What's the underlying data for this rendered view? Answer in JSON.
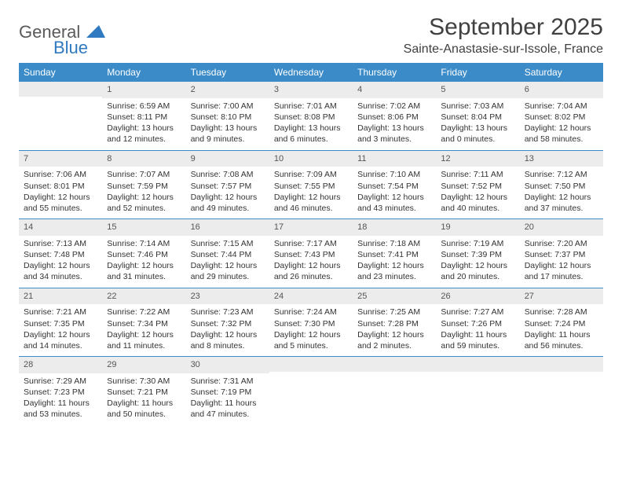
{
  "logo": {
    "word1": "General",
    "word2": "Blue"
  },
  "title": "September 2025",
  "location": "Sainte-Anastasie-sur-Issole, France",
  "colors": {
    "header_bg": "#3b8bc8",
    "daynum_bg": "#ececec",
    "text": "#333333",
    "title_text": "#404040",
    "logo_gray": "#5a5a5a",
    "logo_blue": "#2f7ac0"
  },
  "dayNames": [
    "Sunday",
    "Monday",
    "Tuesday",
    "Wednesday",
    "Thursday",
    "Friday",
    "Saturday"
  ],
  "weeks": [
    [
      {
        "n": "",
        "lines": []
      },
      {
        "n": "1",
        "lines": [
          "Sunrise: 6:59 AM",
          "Sunset: 8:11 PM",
          "Daylight: 13 hours and 12 minutes."
        ]
      },
      {
        "n": "2",
        "lines": [
          "Sunrise: 7:00 AM",
          "Sunset: 8:10 PM",
          "Daylight: 13 hours and 9 minutes."
        ]
      },
      {
        "n": "3",
        "lines": [
          "Sunrise: 7:01 AM",
          "Sunset: 8:08 PM",
          "Daylight: 13 hours and 6 minutes."
        ]
      },
      {
        "n": "4",
        "lines": [
          "Sunrise: 7:02 AM",
          "Sunset: 8:06 PM",
          "Daylight: 13 hours and 3 minutes."
        ]
      },
      {
        "n": "5",
        "lines": [
          "Sunrise: 7:03 AM",
          "Sunset: 8:04 PM",
          "Daylight: 13 hours and 0 minutes."
        ]
      },
      {
        "n": "6",
        "lines": [
          "Sunrise: 7:04 AM",
          "Sunset: 8:02 PM",
          "Daylight: 12 hours and 58 minutes."
        ]
      }
    ],
    [
      {
        "n": "7",
        "lines": [
          "Sunrise: 7:06 AM",
          "Sunset: 8:01 PM",
          "Daylight: 12 hours and 55 minutes."
        ]
      },
      {
        "n": "8",
        "lines": [
          "Sunrise: 7:07 AM",
          "Sunset: 7:59 PM",
          "Daylight: 12 hours and 52 minutes."
        ]
      },
      {
        "n": "9",
        "lines": [
          "Sunrise: 7:08 AM",
          "Sunset: 7:57 PM",
          "Daylight: 12 hours and 49 minutes."
        ]
      },
      {
        "n": "10",
        "lines": [
          "Sunrise: 7:09 AM",
          "Sunset: 7:55 PM",
          "Daylight: 12 hours and 46 minutes."
        ]
      },
      {
        "n": "11",
        "lines": [
          "Sunrise: 7:10 AM",
          "Sunset: 7:54 PM",
          "Daylight: 12 hours and 43 minutes."
        ]
      },
      {
        "n": "12",
        "lines": [
          "Sunrise: 7:11 AM",
          "Sunset: 7:52 PM",
          "Daylight: 12 hours and 40 minutes."
        ]
      },
      {
        "n": "13",
        "lines": [
          "Sunrise: 7:12 AM",
          "Sunset: 7:50 PM",
          "Daylight: 12 hours and 37 minutes."
        ]
      }
    ],
    [
      {
        "n": "14",
        "lines": [
          "Sunrise: 7:13 AM",
          "Sunset: 7:48 PM",
          "Daylight: 12 hours and 34 minutes."
        ]
      },
      {
        "n": "15",
        "lines": [
          "Sunrise: 7:14 AM",
          "Sunset: 7:46 PM",
          "Daylight: 12 hours and 31 minutes."
        ]
      },
      {
        "n": "16",
        "lines": [
          "Sunrise: 7:15 AM",
          "Sunset: 7:44 PM",
          "Daylight: 12 hours and 29 minutes."
        ]
      },
      {
        "n": "17",
        "lines": [
          "Sunrise: 7:17 AM",
          "Sunset: 7:43 PM",
          "Daylight: 12 hours and 26 minutes."
        ]
      },
      {
        "n": "18",
        "lines": [
          "Sunrise: 7:18 AM",
          "Sunset: 7:41 PM",
          "Daylight: 12 hours and 23 minutes."
        ]
      },
      {
        "n": "19",
        "lines": [
          "Sunrise: 7:19 AM",
          "Sunset: 7:39 PM",
          "Daylight: 12 hours and 20 minutes."
        ]
      },
      {
        "n": "20",
        "lines": [
          "Sunrise: 7:20 AM",
          "Sunset: 7:37 PM",
          "Daylight: 12 hours and 17 minutes."
        ]
      }
    ],
    [
      {
        "n": "21",
        "lines": [
          "Sunrise: 7:21 AM",
          "Sunset: 7:35 PM",
          "Daylight: 12 hours and 14 minutes."
        ]
      },
      {
        "n": "22",
        "lines": [
          "Sunrise: 7:22 AM",
          "Sunset: 7:34 PM",
          "Daylight: 12 hours and 11 minutes."
        ]
      },
      {
        "n": "23",
        "lines": [
          "Sunrise: 7:23 AM",
          "Sunset: 7:32 PM",
          "Daylight: 12 hours and 8 minutes."
        ]
      },
      {
        "n": "24",
        "lines": [
          "Sunrise: 7:24 AM",
          "Sunset: 7:30 PM",
          "Daylight: 12 hours and 5 minutes."
        ]
      },
      {
        "n": "25",
        "lines": [
          "Sunrise: 7:25 AM",
          "Sunset: 7:28 PM",
          "Daylight: 12 hours and 2 minutes."
        ]
      },
      {
        "n": "26",
        "lines": [
          "Sunrise: 7:27 AM",
          "Sunset: 7:26 PM",
          "Daylight: 11 hours and 59 minutes."
        ]
      },
      {
        "n": "27",
        "lines": [
          "Sunrise: 7:28 AM",
          "Sunset: 7:24 PM",
          "Daylight: 11 hours and 56 minutes."
        ]
      }
    ],
    [
      {
        "n": "28",
        "lines": [
          "Sunrise: 7:29 AM",
          "Sunset: 7:23 PM",
          "Daylight: 11 hours and 53 minutes."
        ]
      },
      {
        "n": "29",
        "lines": [
          "Sunrise: 7:30 AM",
          "Sunset: 7:21 PM",
          "Daylight: 11 hours and 50 minutes."
        ]
      },
      {
        "n": "30",
        "lines": [
          "Sunrise: 7:31 AM",
          "Sunset: 7:19 PM",
          "Daylight: 11 hours and 47 minutes."
        ]
      },
      {
        "n": "",
        "lines": []
      },
      {
        "n": "",
        "lines": []
      },
      {
        "n": "",
        "lines": []
      },
      {
        "n": "",
        "lines": []
      }
    ]
  ]
}
